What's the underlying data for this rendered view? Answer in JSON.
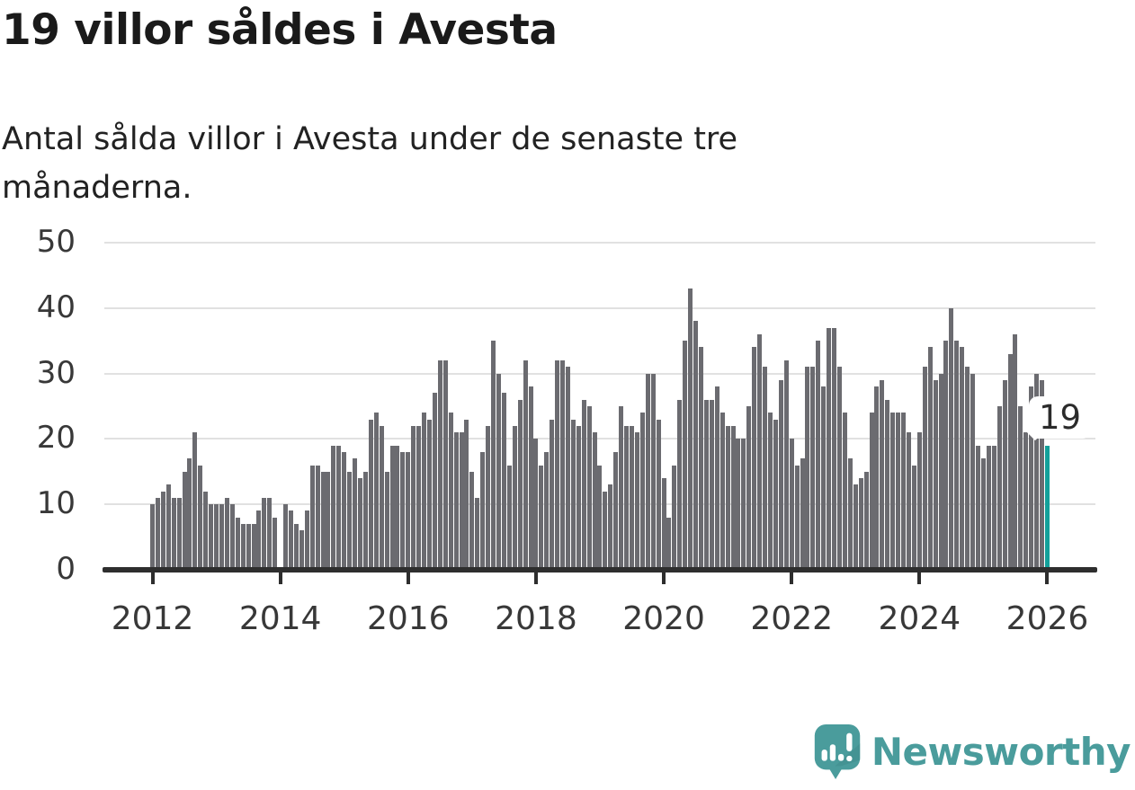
{
  "title": "19 villor såldes i Avesta",
  "subtitle": "Antal sålda villor i Avesta under de senaste tre månaderna.",
  "chart_data": {
    "type": "bar",
    "title": "19 villor såldes i Avesta",
    "frequency": "monthly",
    "x_start": "2012-01",
    "x_end": "2026-01",
    "xlabel": "",
    "ylabel": "",
    "ylim": [
      0,
      50
    ],
    "grid": "horizontal",
    "y_ticks": [
      0,
      10,
      20,
      30,
      40,
      50
    ],
    "x_tick_labels": [
      "2012",
      "2014",
      "2016",
      "2018",
      "2020",
      "2022",
      "2024",
      "2026"
    ],
    "months_per_x_tick": 24,
    "bar_color": "#6b6b70",
    "values": [
      10,
      11,
      12,
      13,
      11,
      11,
      15,
      17,
      21,
      16,
      12,
      10,
      10,
      10,
      11,
      10,
      8,
      7,
      7,
      7,
      9,
      11,
      11,
      8,
      null,
      10,
      9,
      7,
      6,
      9,
      16,
      16,
      15,
      15,
      19,
      19,
      18,
      15,
      17,
      14,
      15,
      23,
      24,
      22,
      15,
      19,
      19,
      18,
      18,
      22,
      22,
      24,
      23,
      27,
      32,
      32,
      24,
      21,
      21,
      23,
      15,
      11,
      18,
      22,
      35,
      30,
      27,
      16,
      22,
      26,
      32,
      28,
      20,
      16,
      18,
      23,
      32,
      32,
      31,
      23,
      22,
      26,
      25,
      21,
      16,
      12,
      13,
      18,
      25,
      22,
      22,
      21,
      24,
      30,
      30,
      23,
      14,
      8,
      16,
      26,
      35,
      43,
      38,
      34,
      26,
      26,
      28,
      24,
      22,
      22,
      20,
      20,
      25,
      34,
      36,
      31,
      24,
      23,
      29,
      32,
      20,
      16,
      17,
      31,
      31,
      35,
      28,
      37,
      37,
      31,
      24,
      17,
      13,
      14,
      15,
      24,
      28,
      29,
      26,
      24,
      24,
      24,
      21,
      16,
      21,
      31,
      34,
      29,
      30,
      35,
      40,
      35,
      34,
      31,
      30,
      19,
      17,
      19,
      19,
      25,
      29,
      33,
      36,
      25,
      21,
      28,
      30,
      29,
      19
    ],
    "missing_value_indexes": [
      24
    ],
    "highlight": {
      "index": 168,
      "value": 19,
      "label": "19",
      "color": "#12a09a"
    }
  },
  "branding": {
    "logo_text": "Newsworthy",
    "brand_color": "#4a9c9c",
    "brand_color_dark": "#3f8d8c"
  }
}
